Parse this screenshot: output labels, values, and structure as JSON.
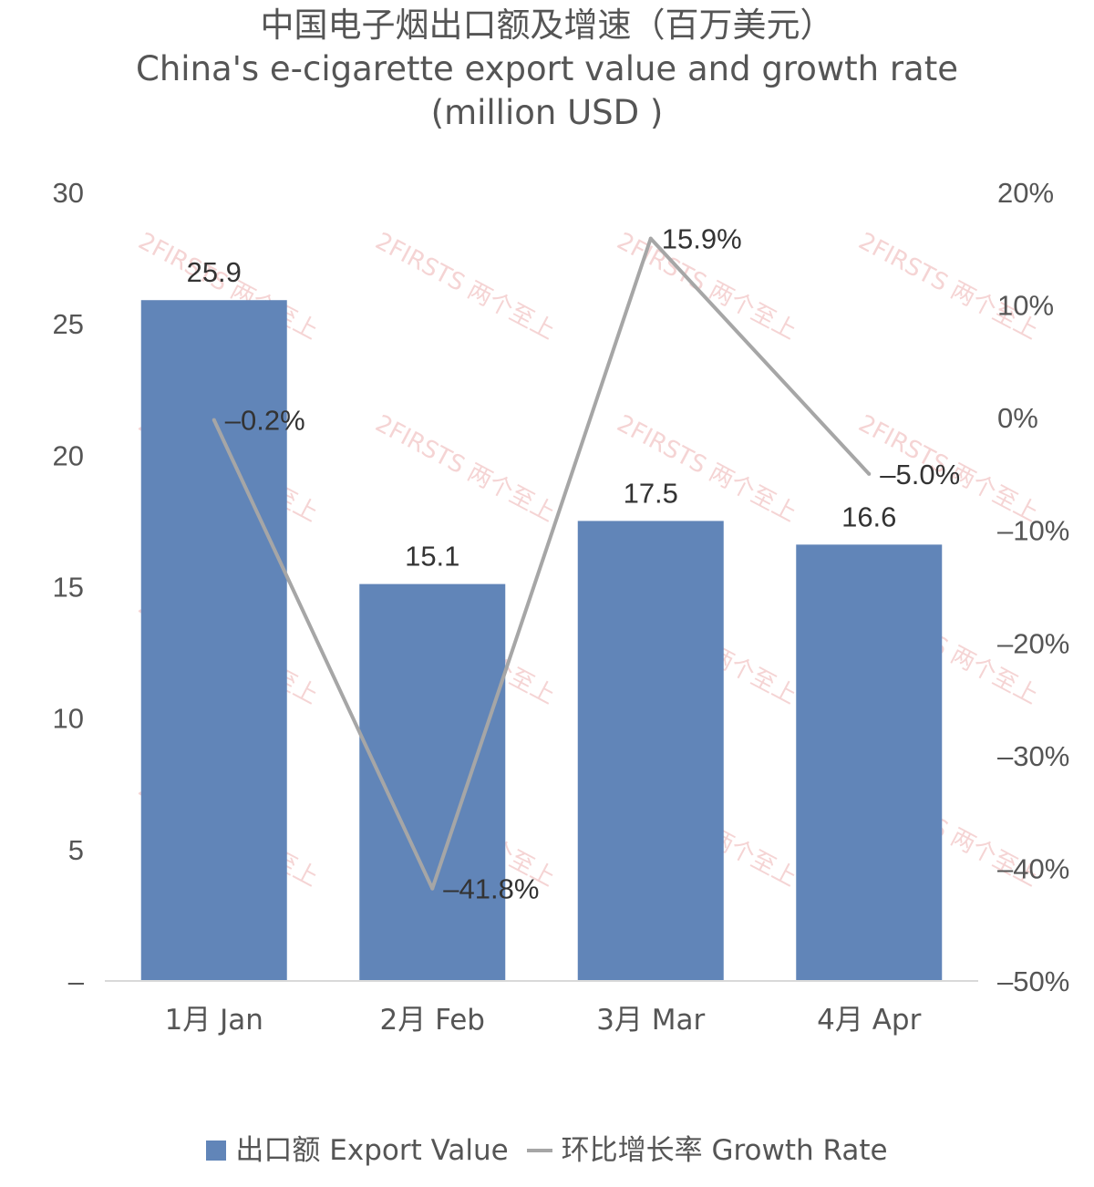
{
  "title": {
    "line1": "中国电子烟出口额及增速（百万美元）",
    "line2": "China's e-cigarette export value and growth rate",
    "line3": "(million USD )"
  },
  "watermark": "2FIRSTS 两个至上",
  "colors": {
    "bar": "#6185b8",
    "line": "#a6a6a6",
    "text": "#555555",
    "label": "#333333",
    "axis": "#d9d9d9",
    "watermark": "#e8a0a0"
  },
  "chart_data": {
    "type": "bar",
    "categories": [
      "1月 Jan",
      "2月 Feb",
      "3月 Mar",
      "4月 Apr"
    ],
    "series": [
      {
        "name": "出口额 Export Value",
        "type": "bar",
        "axis": "left",
        "values": [
          25.9,
          15.1,
          17.5,
          16.6
        ],
        "labels": [
          "25.9",
          "15.1",
          "17.5",
          "16.6"
        ]
      },
      {
        "name": "环比增长率 Growth Rate",
        "type": "line",
        "axis": "right",
        "values": [
          -0.2,
          -41.8,
          15.9,
          -5.0
        ],
        "labels": [
          "–0.2%",
          "–41.8%",
          "15.9%",
          "–5.0%"
        ]
      }
    ],
    "left_axis": {
      "min": 0,
      "max": 30,
      "ticks": [
        "–",
        "5",
        "10",
        "15",
        "20",
        "25",
        "30"
      ]
    },
    "right_axis": {
      "min": -50,
      "max": 20,
      "ticks": [
        "–50%",
        "–40%",
        "–30%",
        "–20%",
        "–10%",
        "0%",
        "10%",
        "20%"
      ]
    },
    "grid": false,
    "legend_position": "bottom"
  },
  "legend": {
    "bar_label": "出口额 Export Value",
    "line_label": "环比增长率 Growth Rate"
  }
}
